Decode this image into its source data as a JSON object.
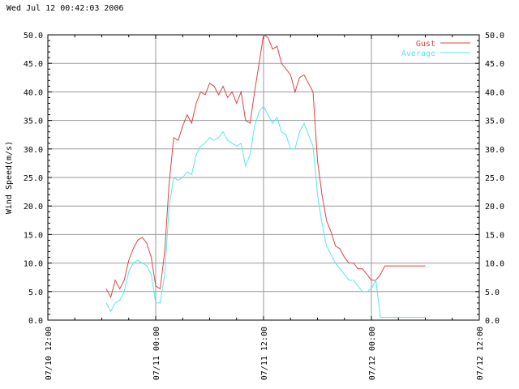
{
  "header": {
    "timestamp": "Wed Jul 12 00:42:03 2006"
  },
  "chart_data": {
    "type": "line",
    "ylabel": "Wind Speed(m/s)",
    "xlabel": "",
    "ylim": [
      0,
      50
    ],
    "y_ticks": [
      0,
      5,
      10,
      15,
      20,
      25,
      30,
      35,
      40,
      45,
      50
    ],
    "y_tick_labels": [
      "0.0",
      "5.0",
      "10.0",
      "15.0",
      "20.0",
      "25.0",
      "30.0",
      "35.0",
      "40.0",
      "45.0",
      "50.0"
    ],
    "x_ticks_hours": [
      0,
      12,
      24,
      36,
      48
    ],
    "x_tick_labels": [
      "07/10 12:00",
      "07/11 00:00",
      "07/11 12:00",
      "07/12 00:00",
      "07/12 12:00"
    ],
    "x_unit": "hours since 07/10 12:00",
    "xlim": [
      0,
      48
    ],
    "grid": true,
    "legend_position": "top-right",
    "colors": {
      "gust": "#dd4444",
      "average": "#55e8e8",
      "grid": "#999999"
    },
    "series": [
      {
        "name": "Gust",
        "color": "#dd4444",
        "x": [
          6.5,
          7,
          7.5,
          8,
          8.5,
          9,
          9.5,
          10,
          10.5,
          11,
          11.5,
          12,
          12.5,
          13,
          13.5,
          14,
          14.5,
          15,
          15.5,
          16,
          16.5,
          17,
          17.5,
          18,
          18.5,
          19,
          19.5,
          20,
          20.5,
          21,
          21.5,
          22,
          22.5,
          23,
          23.5,
          24,
          24.5,
          25,
          25.5,
          26,
          26.5,
          27,
          27.5,
          28,
          28.5,
          29,
          29.5,
          30,
          30.5,
          31,
          31.5,
          32,
          32.5,
          33,
          33.5,
          34,
          34.5,
          35,
          35.5,
          36,
          36.5,
          37,
          37.5,
          38,
          38.5,
          39,
          39.5,
          40,
          40.5,
          41,
          41.5,
          42
        ],
        "y": [
          5.5,
          4.0,
          7.0,
          5.5,
          7.0,
          10.5,
          12.5,
          14.0,
          14.5,
          13.5,
          11.0,
          6.0,
          5.5,
          12.0,
          24.0,
          32.0,
          31.5,
          34.0,
          36.0,
          34.5,
          38.0,
          40.0,
          39.5,
          41.5,
          41.0,
          39.5,
          41.0,
          39.0,
          40.0,
          38.0,
          40.0,
          35.0,
          34.5,
          40.0,
          45.0,
          50.0,
          49.5,
          47.5,
          48.0,
          45.0,
          44.0,
          43.0,
          40.0,
          42.5,
          43.0,
          41.5,
          40.0,
          28.0,
          22.0,
          17.5,
          15.5,
          13.0,
          12.5,
          11.0,
          10.0,
          10.0,
          9.0,
          9.0,
          8.0,
          7.0,
          7.0,
          8.0,
          9.5,
          9.5,
          9.5,
          9.5,
          9.5,
          9.5,
          9.5,
          9.5,
          9.5,
          9.5
        ]
      },
      {
        "name": "Average",
        "color": "#55e8e8",
        "x": [
          6.5,
          7,
          7.5,
          8,
          8.5,
          9,
          9.5,
          10,
          10.5,
          11,
          11.5,
          12,
          12.5,
          13,
          13.5,
          14,
          14.5,
          15,
          15.5,
          16,
          16.5,
          17,
          17.5,
          18,
          18.5,
          19,
          19.5,
          20,
          20.5,
          21,
          21.5,
          22,
          22.5,
          23,
          23.5,
          24,
          24.5,
          25,
          25.5,
          26,
          26.5,
          27,
          27.5,
          28,
          28.5,
          29,
          29.5,
          30,
          30.5,
          31,
          31.5,
          32,
          32.5,
          33,
          33.5,
          34,
          34.5,
          35,
          35.5,
          36,
          36.5,
          37,
          37.5,
          38,
          38.5,
          39,
          39.5,
          40,
          40.5,
          41,
          41.5,
          42
        ],
        "y": [
          3.0,
          1.5,
          3.0,
          3.5,
          5.0,
          8.5,
          10.0,
          10.5,
          10.0,
          9.5,
          8.0,
          3.0,
          3.0,
          8.0,
          20.0,
          25.0,
          24.5,
          25.0,
          26.0,
          25.5,
          29.0,
          30.5,
          31.0,
          32.0,
          31.5,
          32.0,
          33.0,
          31.5,
          31.0,
          30.5,
          31.0,
          27.0,
          29.0,
          34.0,
          36.5,
          37.5,
          36.0,
          34.5,
          35.5,
          33.0,
          32.5,
          30.0,
          30.0,
          33.0,
          34.5,
          32.5,
          30.5,
          22.0,
          17.0,
          13.0,
          11.5,
          10.0,
          9.0,
          8.0,
          7.0,
          7.0,
          6.0,
          5.0,
          5.0,
          5.5,
          7.0,
          0.5,
          0.5,
          0.5,
          0.5,
          0.5,
          0.5,
          0.5,
          0.5,
          0.5,
          0.5,
          0.5
        ]
      }
    ]
  }
}
